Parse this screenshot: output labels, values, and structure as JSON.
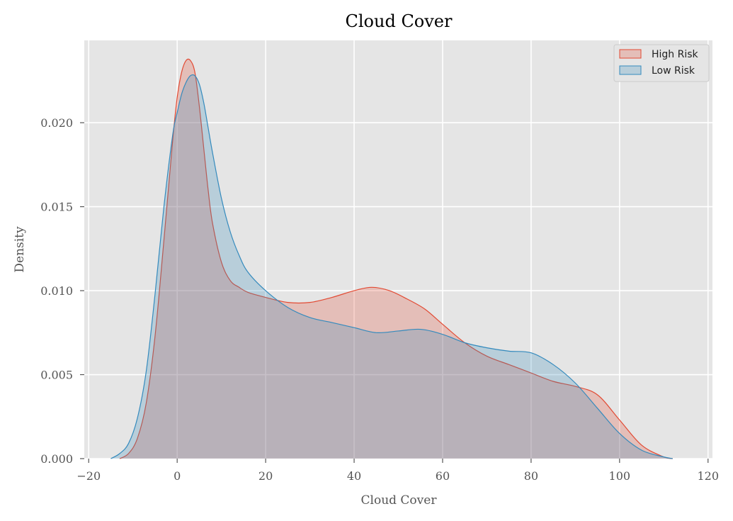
{
  "chart_data": {
    "type": "area",
    "title": "Cloud Cover",
    "xlabel": "Cloud Cover",
    "ylabel": "Density",
    "xlim": [
      -21,
      121
    ],
    "ylim": [
      0,
      0.0249
    ],
    "xticks": [
      -20,
      0,
      20,
      40,
      60,
      80,
      100,
      120
    ],
    "xtick_labels": [
      "−20",
      "0",
      "20",
      "40",
      "60",
      "80",
      "100",
      "120"
    ],
    "yticks": [
      0.0,
      0.005,
      0.01,
      0.015,
      0.02
    ],
    "ytick_labels": [
      "0.000",
      "0.005",
      "0.010",
      "0.015",
      "0.020"
    ],
    "grid": true,
    "legend_position": "top-right",
    "series": [
      {
        "name": "High Risk",
        "color": "#E24A33",
        "fill_color": "#E24A33",
        "x": [
          -13,
          -11,
          -9,
          -7,
          -5,
          -3,
          -1,
          0,
          1,
          2,
          3,
          4,
          5,
          6,
          7,
          8,
          10,
          12,
          14,
          16,
          20,
          25,
          30,
          35,
          40,
          44,
          48,
          52,
          56,
          60,
          65,
          70,
          75,
          80,
          85,
          90,
          95,
          100,
          105,
          110,
          112
        ],
        "y": [
          0.0,
          0.0003,
          0.0012,
          0.0033,
          0.0073,
          0.013,
          0.019,
          0.0215,
          0.023,
          0.0237,
          0.0237,
          0.023,
          0.021,
          0.0185,
          0.016,
          0.014,
          0.0117,
          0.0106,
          0.0102,
          0.0099,
          0.0096,
          0.0093,
          0.0093,
          0.0096,
          0.01,
          0.0102,
          0.01,
          0.0095,
          0.0089,
          0.008,
          0.0069,
          0.0061,
          0.0056,
          0.0051,
          0.0046,
          0.0043,
          0.0038,
          0.0023,
          0.0008,
          0.0001,
          0.0
        ]
      },
      {
        "name": "Low Risk",
        "color": "#348ABD",
        "fill_color": "#348ABD",
        "x": [
          -15,
          -13,
          -11,
          -9,
          -7,
          -5,
          -3,
          -1,
          0,
          1,
          2,
          3,
          4,
          5,
          6,
          7,
          8,
          10,
          12,
          14,
          16,
          20,
          25,
          30,
          35,
          40,
          45,
          50,
          55,
          60,
          65,
          70,
          75,
          80,
          85,
          90,
          95,
          100,
          105,
          110,
          112
        ],
        "y": [
          0.0,
          0.0003,
          0.0009,
          0.0024,
          0.0052,
          0.0098,
          0.015,
          0.0193,
          0.0206,
          0.0217,
          0.0224,
          0.0228,
          0.0228,
          0.0223,
          0.0212,
          0.0197,
          0.0182,
          0.0155,
          0.0135,
          0.0121,
          0.0111,
          0.01,
          0.009,
          0.0084,
          0.0081,
          0.0078,
          0.0075,
          0.0076,
          0.0077,
          0.0074,
          0.0069,
          0.0066,
          0.0064,
          0.0063,
          0.0056,
          0.0045,
          0.003,
          0.0015,
          0.0005,
          0.0001,
          0.0
        ]
      }
    ]
  }
}
